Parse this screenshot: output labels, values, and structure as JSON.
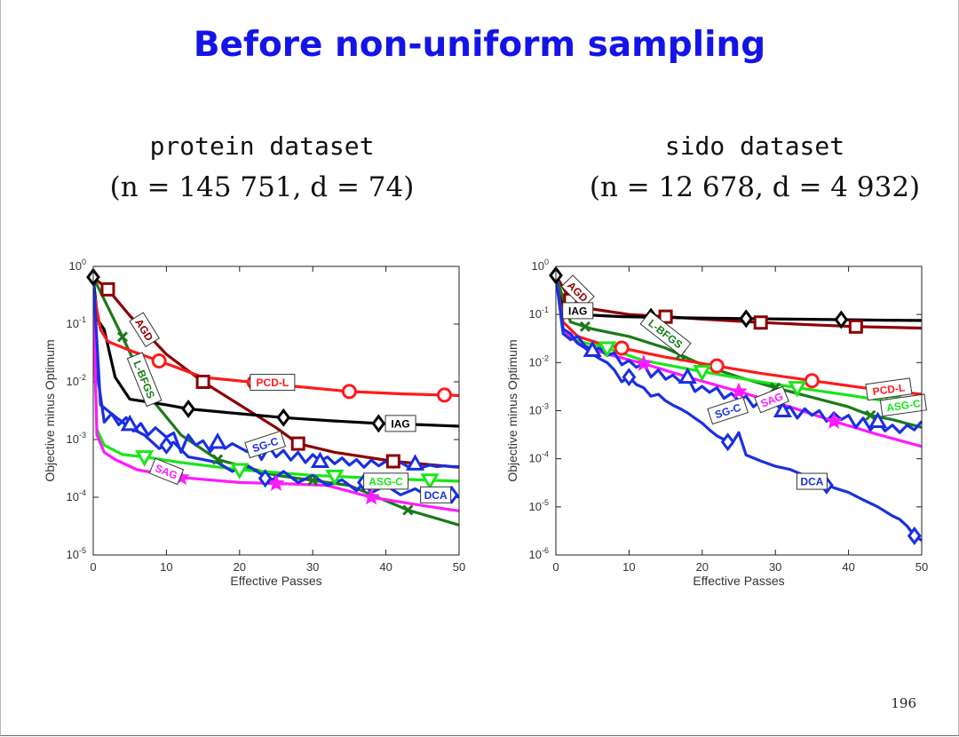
{
  "slide": {
    "title": "Before non-uniform sampling",
    "page_number": "196"
  },
  "datasets": [
    {
      "name": "protein dataset",
      "params": "(n = 145 751, d  = 74)"
    },
    {
      "name": "sido dataset",
      "params": "(n = 12 678, d = 4 932)"
    }
  ],
  "colors": {
    "AGD": "#8b0000",
    "IAG": "#000000",
    "L-BFGS": "#1a7a1a",
    "PCD-L": "#ff1a1a",
    "SG-C": "#1a2fe0",
    "ASG-C": "#19e619",
    "SAG": "#ff1aff",
    "DCA": "#1a2fe0"
  },
  "chart_data": [
    {
      "type": "line",
      "title": "protein dataset",
      "xlabel": "Effective Passes",
      "ylabel": "Objective minus Optimum",
      "xlim": [
        0,
        50
      ],
      "ylim": [
        1e-05,
        1
      ],
      "yscale": "log",
      "xticks": [
        "0",
        "10",
        "20",
        "30",
        "40",
        "50"
      ],
      "yticks": [
        "10^0",
        "10^-1",
        "10^-2",
        "10^-3",
        "10^-4",
        "10^-5"
      ],
      "series": [
        {
          "name": "AGD",
          "marker": "square",
          "x": [
            0,
            2,
            5,
            10,
            15,
            20,
            25,
            28,
            33,
            41,
            50
          ],
          "y": [
            0.65,
            0.4,
            0.14,
            0.03,
            0.01,
            0.004,
            0.0016,
            0.00085,
            0.0006,
            0.00042,
            0.00033
          ],
          "markers_x": [
            2,
            15,
            28,
            41
          ],
          "label": "AGD",
          "label_x": 7,
          "label_y": 0.08,
          "label_rot": 58
        },
        {
          "name": "L-BFGS",
          "marker": "x",
          "x": [
            0,
            4,
            8,
            12,
            17,
            25,
            35,
            43,
            50
          ],
          "y": [
            0.65,
            0.06,
            0.005,
            0.0012,
            0.00045,
            0.00024,
            0.00016,
            6e-05,
            3.3e-05
          ],
          "markers_x": [
            4,
            17,
            30,
            43
          ],
          "label": "L-BFGS",
          "label_x": 7,
          "label_y": 0.011,
          "label_rot": 68
        },
        {
          "name": "IAG",
          "marker": "diamond",
          "x": [
            0,
            0.6,
            1.5,
            3,
            5,
            10,
            13,
            20,
            26,
            33,
            39,
            45,
            50
          ],
          "y": [
            0.65,
            0.12,
            0.08,
            0.012,
            0.005,
            0.004,
            0.0034,
            0.0028,
            0.0024,
            0.0021,
            0.0019,
            0.0018,
            0.0017
          ],
          "markers_x": [
            0,
            13,
            26,
            39
          ],
          "label": "IAG",
          "label_x": 42,
          "label_y": 0.0019,
          "label_rot": 0
        },
        {
          "name": "PCD-L",
          "marker": "circle",
          "x": [
            0,
            1,
            2,
            5,
            9,
            15,
            22,
            30,
            35,
            42,
            50
          ],
          "y": [
            0.4,
            0.08,
            0.05,
            0.035,
            0.023,
            0.012,
            0.0098,
            0.0078,
            0.0068,
            0.0062,
            0.0058
          ],
          "markers_x": [
            9,
            22,
            35,
            48
          ],
          "label": "PCD-L",
          "label_x": 24.5,
          "label_y": 0.0098,
          "label_rot": 0
        },
        {
          "name": "SG-C",
          "marker": "triangle",
          "x": [
            0,
            0.7,
            1.5,
            2.5,
            3.5,
            4.5,
            5.5,
            6.5,
            7.5,
            8.5,
            10,
            11,
            12,
            13,
            14,
            15,
            16,
            17,
            18,
            19,
            21,
            22,
            23,
            24,
            25,
            26,
            27,
            28,
            29,
            30,
            31,
            32,
            33,
            34,
            35,
            36,
            37,
            38,
            39,
            40,
            41,
            42,
            43,
            44,
            45,
            46,
            47,
            48,
            49,
            50
          ],
          "y": [
            0.65,
            0.01,
            0.002,
            0.0028,
            0.0018,
            0.0024,
            0.0014,
            0.0019,
            0.0012,
            0.0016,
            0.0011,
            0.0013,
            0.0006,
            0.0012,
            0.0008,
            0.00095,
            0.00062,
            0.0009,
            0.0007,
            0.00085,
            0.00062,
            0.0008,
            0.00045,
            0.00075,
            0.0005,
            0.00065,
            0.00044,
            0.0006,
            0.0004,
            0.00055,
            0.00042,
            0.0005,
            0.00038,
            0.00048,
            0.00036,
            0.00045,
            0.00033,
            0.00044,
            0.00035,
            0.00042,
            0.00033,
            0.0004,
            0.00034,
            0.00038,
            0.00033,
            0.00036,
            0.00034,
            0.00035,
            0.00034,
            0.00034
          ],
          "markers_x": [
            5,
            17,
            31,
            44
          ],
          "label": "SG-C",
          "label_x": 23.5,
          "label_y": 0.00082,
          "label_rot": -18
        },
        {
          "name": "ASG-C",
          "marker": "tri-down",
          "x": [
            0,
            0.5,
            1.5,
            4,
            7,
            12,
            20,
            30,
            40,
            50
          ],
          "y": [
            0.2,
            0.0015,
            0.0008,
            0.00055,
            0.0005,
            0.0004,
            0.0003,
            0.00024,
            0.00021,
            0.00019
          ],
          "markers_x": [
            7,
            20,
            33,
            46
          ],
          "label": "ASG-C",
          "label_x": 40,
          "label_y": 0.00019,
          "label_rot": 0
        },
        {
          "name": "SAG",
          "marker": "star",
          "x": [
            0,
            0.5,
            1.5,
            3,
            6,
            12,
            20,
            27,
            32,
            38,
            44,
            50
          ],
          "y": [
            0.3,
            0.0012,
            0.0006,
            0.00045,
            0.0003,
            0.00022,
            0.00018,
            0.00017,
            0.00016,
            0.0001,
            7.5e-05,
            5.8e-05
          ],
          "markers_x": [
            12,
            25,
            38
          ],
          "label": "SAG",
          "label_x": 10,
          "label_y": 0.00028,
          "label_rot": 22
        },
        {
          "name": "DCA",
          "marker": "diamond",
          "x": [
            0,
            1,
            3,
            5,
            7,
            9,
            11,
            13,
            15,
            17,
            19,
            21,
            23,
            24,
            26,
            28,
            30,
            32,
            34,
            36,
            37,
            38,
            40,
            42,
            44,
            46,
            48,
            50
          ],
          "y": [
            0.65,
            0.004,
            0.0025,
            0.0016,
            0.0012,
            0.0007,
            0.0009,
            0.0005,
            0.00045,
            0.0004,
            0.00028,
            0.00036,
            0.00025,
            0.00018,
            0.00028,
            0.00018,
            0.00024,
            0.00016,
            0.0002,
            0.00013,
            0.00018,
            0.00012,
            0.00016,
            0.00011,
            0.00014,
            0.0001,
            0.00012,
            0.0001
          ],
          "markers_x": [
            10,
            23.5,
            37,
            49
          ],
          "label": "DCA",
          "label_x": 46.8,
          "label_y": 0.00011,
          "label_rot": 0
        }
      ]
    },
    {
      "type": "line",
      "title": "sido dataset",
      "xlabel": "Effective Passes",
      "ylabel": "Objective minus Optimum",
      "xlim": [
        0,
        50
      ],
      "ylim": [
        1e-06,
        1
      ],
      "yscale": "log",
      "xticks": [
        "0",
        "10",
        "20",
        "30",
        "40",
        "50"
      ],
      "yticks": [
        "10^0",
        "10^-1",
        "10^-2",
        "10^-3",
        "10^-4",
        "10^-5",
        "10^-6"
      ],
      "series": [
        {
          "name": "AGD",
          "marker": "square",
          "x": [
            0,
            2,
            5,
            10,
            15,
            20,
            28,
            35,
            41,
            50
          ],
          "y": [
            0.65,
            0.2,
            0.13,
            0.1,
            0.09,
            0.08,
            0.068,
            0.061,
            0.056,
            0.052
          ],
          "markers_x": [
            2,
            15,
            28,
            41
          ],
          "label": "AGD",
          "label_x": 3,
          "label_y": 0.3,
          "label_rot": 45
        },
        {
          "name": "IAG",
          "marker": "diamond",
          "x": [
            0,
            1,
            3,
            6,
            9,
            13,
            18,
            26,
            32,
            39,
            45,
            50
          ],
          "y": [
            0.65,
            0.15,
            0.1,
            0.095,
            0.09,
            0.088,
            0.085,
            0.082,
            0.08,
            0.078,
            0.076,
            0.075
          ],
          "markers_x": [
            0,
            13,
            26,
            39
          ],
          "label": "IAG",
          "label_x": 3,
          "label_y": 0.12,
          "label_rot": 0
        },
        {
          "name": "L-BFGS",
          "marker": "x",
          "x": [
            0,
            2,
            5,
            10,
            15,
            20,
            25,
            30,
            35,
            40,
            43,
            46,
            50
          ],
          "y": [
            0.65,
            0.07,
            0.05,
            0.035,
            0.02,
            0.009,
            0.005,
            0.003,
            0.0019,
            0.0012,
            0.0008,
            0.00065,
            0.00045
          ],
          "markers_x": [
            4,
            17,
            30,
            43
          ],
          "label": "L-BFGS",
          "label_x": 15,
          "label_y": 0.04,
          "label_rot": 38
        },
        {
          "name": "PCD-L",
          "marker": "circle",
          "x": [
            0,
            1,
            3,
            6,
            9,
            15,
            22,
            28,
            35,
            42,
            50
          ],
          "y": [
            0.65,
            0.07,
            0.035,
            0.025,
            0.02,
            0.013,
            0.0085,
            0.006,
            0.0042,
            0.003,
            0.0022
          ],
          "markers_x": [
            9,
            22,
            35
          ],
          "label": "PCD-L",
          "label_x": 45.5,
          "label_y": 0.0028,
          "label_rot": -8
        },
        {
          "name": "ASG-C",
          "marker": "tri-down",
          "x": [
            0,
            1,
            3,
            7,
            12,
            20,
            27,
            33,
            40,
            45,
            50
          ],
          "y": [
            0.65,
            0.04,
            0.028,
            0.02,
            0.011,
            0.0065,
            0.0042,
            0.003,
            0.0021,
            0.0016,
            0.0012
          ],
          "markers_x": [
            7,
            20,
            33,
            46
          ],
          "label": "ASG-C",
          "label_x": 47.5,
          "label_y": 0.0013,
          "label_rot": -8
        },
        {
          "name": "SAG",
          "marker": "star",
          "x": [
            0,
            1,
            3,
            7,
            12,
            18,
            25,
            32,
            38,
            44,
            50
          ],
          "y": [
            0.65,
            0.05,
            0.025,
            0.015,
            0.0095,
            0.005,
            0.0025,
            0.0012,
            0.0006,
            0.00032,
            0.00018
          ],
          "markers_x": [
            12,
            25,
            38
          ],
          "label": "SAG",
          "label_x": 29.5,
          "label_y": 0.0017,
          "label_rot": -22
        },
        {
          "name": "SG-C",
          "marker": "triangle",
          "x": [
            0,
            1,
            2,
            3,
            4,
            5,
            6,
            7,
            8,
            9,
            10,
            11,
            12,
            13,
            14,
            15,
            16,
            17,
            18,
            19,
            20,
            21,
            22,
            23,
            24,
            25,
            26,
            27,
            28,
            29,
            30,
            31,
            32,
            33,
            34,
            35,
            36,
            37,
            38,
            39,
            40,
            41,
            42,
            43,
            44,
            45,
            46,
            47,
            48,
            49,
            50
          ],
          "y": [
            0.65,
            0.04,
            0.03,
            0.035,
            0.022,
            0.018,
            0.02,
            0.014,
            0.016,
            0.009,
            0.011,
            0.008,
            0.0095,
            0.005,
            0.007,
            0.0045,
            0.0055,
            0.004,
            0.005,
            0.0025,
            0.0032,
            0.0024,
            0.003,
            0.0018,
            0.0023,
            0.0016,
            0.002,
            0.0012,
            0.0016,
            0.0011,
            0.0014,
            0.001,
            0.0012,
            0.0007,
            0.0011,
            0.0008,
            0.001,
            0.0006,
            0.0009,
            0.00065,
            0.0008,
            0.00045,
            0.0007,
            0.0004,
            0.0006,
            0.00038,
            0.0005,
            0.00035,
            0.0005,
            0.0004,
            0.0006
          ],
          "markers_x": [
            5,
            18,
            31,
            44
          ],
          "label": "SG-C",
          "label_x": 23.5,
          "label_y": 0.001,
          "label_rot": -18
        },
        {
          "name": "DCA",
          "marker": "diamond",
          "x": [
            0,
            1,
            2,
            3,
            4,
            5,
            6,
            7,
            8,
            9,
            10,
            11,
            12,
            13,
            14,
            15,
            16,
            17,
            18,
            19,
            20,
            21,
            22,
            23,
            24,
            25,
            26,
            28,
            30,
            32,
            34,
            36,
            38,
            40,
            42,
            44,
            46,
            47,
            48,
            49,
            50
          ],
          "y": [
            0.65,
            0.05,
            0.04,
            0.025,
            0.02,
            0.015,
            0.012,
            0.01,
            0.007,
            0.004,
            0.005,
            0.0035,
            0.003,
            0.002,
            0.0022,
            0.0016,
            0.0013,
            0.0011,
            0.0009,
            0.0007,
            0.00055,
            0.0004,
            0.0003,
            0.00025,
            0.0002,
            0.00035,
            0.00012,
            9e-05,
            7e-05,
            6e-05,
            4.5e-05,
            3.2e-05,
            2.5e-05,
            2e-05,
            1.4e-05,
            1e-05,
            6.5e-06,
            5.5e-06,
            4e-06,
            2.5e-06,
            2e-06
          ],
          "markers_x": [
            10,
            23.5,
            37,
            49
          ],
          "label": "DCA",
          "label_x": 35,
          "label_y": 3.4e-05,
          "label_rot": 0
        }
      ]
    }
  ]
}
